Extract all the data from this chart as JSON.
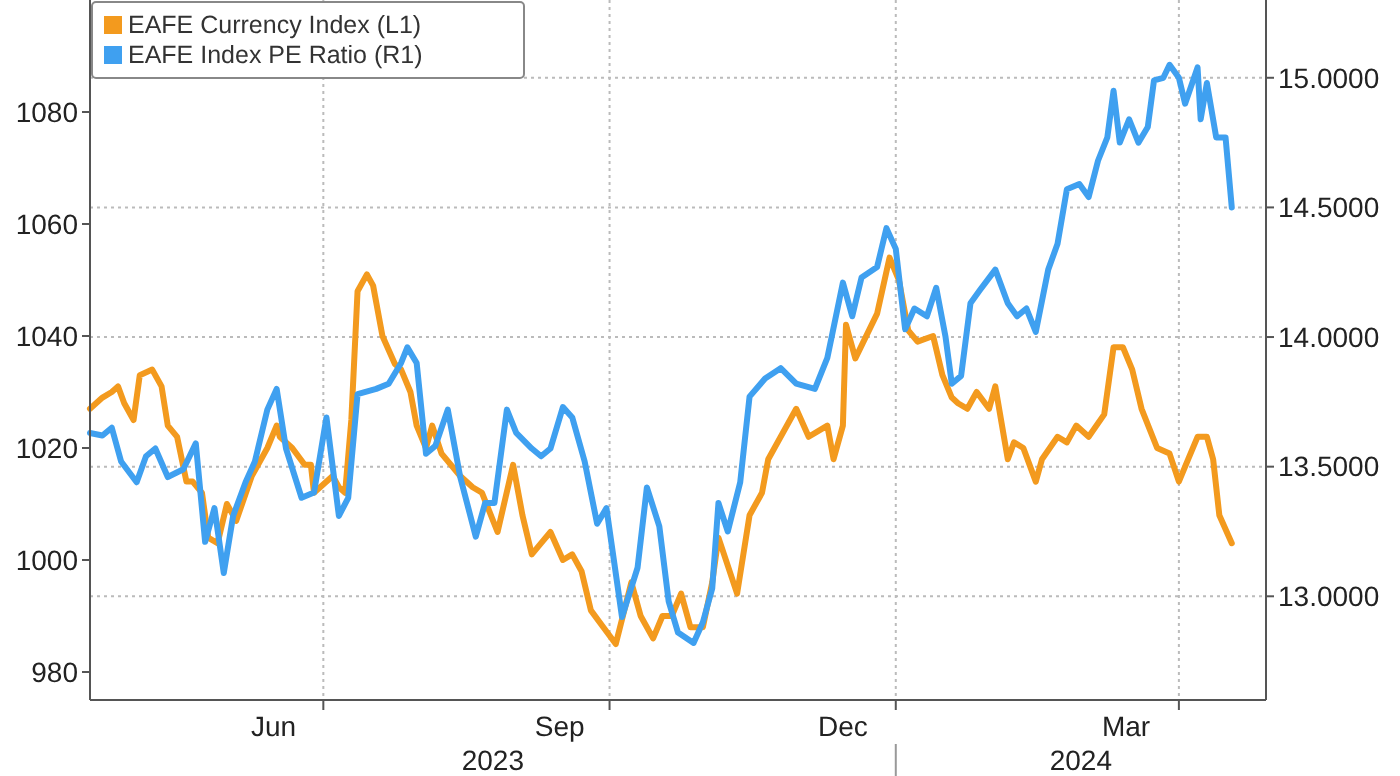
{
  "chart_data": {
    "type": "line",
    "xlim": [
      "2023-04-17",
      "2024-04-29"
    ],
    "xticks": [
      {
        "value": "2023-06-15",
        "label": "Jun"
      },
      {
        "value": "2023-07-01",
        "label": null
      },
      {
        "value": "2023-09-15",
        "label": "Sep"
      },
      {
        "value": "2023-10-01",
        "label": null
      },
      {
        "value": "2023-12-15",
        "label": "Dec"
      },
      {
        "value": "2024-01-01",
        "label": null
      },
      {
        "value": "2024-03-15",
        "label": "Mar"
      },
      {
        "value": "2024-04-01",
        "label": null
      }
    ],
    "ylim": [
      975,
      1100
    ],
    "yticks": [
      980,
      1000,
      1020,
      1040,
      1060,
      1080
    ],
    "y2lim": [
      12.6,
      15.3
    ],
    "y2ticks": [
      {
        "value": 13,
        "label": "13.0000"
      },
      {
        "value": 13.5,
        "label": "13.5000"
      },
      {
        "value": 14,
        "label": "14.0000"
      },
      {
        "value": 14.5,
        "label": "14.5000"
      },
      {
        "value": 15,
        "label": "15.0000"
      }
    ],
    "grid": true,
    "legend": "top left",
    "line_style": "solid",
    "annotations": [
      "2023",
      "2024"
    ],
    "series": [
      {
        "name": "EAFE Currency Index (L1)",
        "color": "#f39a1e",
        "x": [
          "2023-04-17",
          "2023-04-21",
          "2023-04-24",
          "2023-04-26",
          "2023-04-28",
          "2023-05-01",
          "2023-05-03",
          "2023-05-07",
          "2023-05-10",
          "2023-05-12",
          "2023-05-15",
          "2023-05-18",
          "2023-05-20",
          "2023-05-23",
          "2023-05-25",
          "2023-05-28",
          "2023-05-31",
          "2023-06-03",
          "2023-06-08",
          "2023-06-13",
          "2023-06-16",
          "2023-06-17",
          "2023-06-21",
          "2023-06-25",
          "2023-06-27",
          "2023-06-28",
          "2023-07-04",
          "2023-07-06",
          "2023-07-08",
          "2023-07-10",
          "2023-07-12",
          "2023-07-15",
          "2023-07-17",
          "2023-07-20",
          "2023-07-24",
          "2023-07-26",
          "2023-07-29",
          "2023-07-31",
          "2023-08-03",
          "2023-08-05",
          "2023-08-08",
          "2023-08-14",
          "2023-08-18",
          "2023-08-21",
          "2023-08-26",
          "2023-08-31",
          "2023-09-03",
          "2023-09-06",
          "2023-09-09",
          "2023-09-12",
          "2023-09-16",
          "2023-09-19",
          "2023-09-22",
          "2023-09-25",
          "2023-09-29",
          "2023-10-03",
          "2023-10-08",
          "2023-10-11",
          "2023-10-15",
          "2023-10-18",
          "2023-10-21",
          "2023-10-24",
          "2023-10-27",
          "2023-10-31",
          "2023-11-03",
          "2023-11-05",
          "2023-11-08",
          "2023-11-11",
          "2023-11-15",
          "2023-11-19",
          "2023-11-21",
          "2023-11-30",
          "2023-12-04",
          "2023-12-10",
          "2023-12-12",
          "2023-12-15",
          "2023-12-16",
          "2023-12-19",
          "2023-12-26",
          "2023-12-30",
          "2024-01-02",
          "2024-01-05",
          "2024-01-08",
          "2024-01-13",
          "2024-01-16",
          "2024-01-19",
          "2024-01-21",
          "2024-01-24",
          "2024-01-27",
          "2024-01-31",
          "2024-02-02",
          "2024-02-06",
          "2024-02-08",
          "2024-02-11",
          "2024-02-15",
          "2024-02-17",
          "2024-02-22",
          "2024-02-25",
          "2024-02-28",
          "2024-03-03",
          "2024-03-08",
          "2024-03-11",
          "2024-03-14",
          "2024-03-17",
          "2024-03-20",
          "2024-03-25",
          "2024-03-29",
          "2024-04-01",
          "2024-04-04",
          "2024-04-07",
          "2024-04-10",
          "2024-04-12",
          "2024-04-14",
          "2024-04-18"
        ],
        "values": [
          1027,
          1029,
          1030,
          1031,
          1028,
          1025,
          1033,
          1034,
          1031,
          1024,
          1022,
          1014,
          1014,
          1012,
          1004,
          1003,
          1010,
          1007,
          1015,
          1020,
          1024,
          1022,
          1020,
          1017,
          1017,
          1012,
          1015,
          1013,
          1012,
          1025,
          1048,
          1051,
          1049,
          1040,
          1035,
          1034,
          1030,
          1024,
          1020,
          1024,
          1019,
          1015,
          1013,
          1012,
          1005,
          1017,
          1008,
          1001,
          1003,
          1005,
          1000,
          1001,
          998,
          991,
          988,
          985,
          996,
          990,
          986,
          990,
          990,
          994,
          988,
          988,
          996,
          1004,
          999,
          994,
          1008,
          1012,
          1018,
          1027,
          1022,
          1024,
          1018,
          1024,
          1042,
          1036,
          1044,
          1054,
          1050,
          1041,
          1039,
          1040,
          1033,
          1029,
          1028,
          1027,
          1030,
          1027,
          1031,
          1018,
          1021,
          1020,
          1014,
          1018,
          1022,
          1021,
          1024,
          1022,
          1026,
          1038,
          1038,
          1034,
          1027,
          1020,
          1019,
          1014,
          1018,
          1022,
          1022,
          1018,
          1008,
          1003
        ]
      },
      {
        "name": "EAFE Index PE Ratio (R1)",
        "color": "#3fa0f0",
        "axis": "y2",
        "x": [
          "2023-04-17",
          "2023-04-21",
          "2023-04-24",
          "2023-04-27",
          "2023-05-02",
          "2023-05-05",
          "2023-05-08",
          "2023-05-12",
          "2023-05-17",
          "2023-05-21",
          "2023-05-24",
          "2023-05-27",
          "2023-05-30",
          "2023-06-02",
          "2023-06-06",
          "2023-06-09",
          "2023-06-13",
          "2023-06-16",
          "2023-06-19",
          "2023-06-24",
          "2023-06-28",
          "2023-07-02",
          "2023-07-06",
          "2023-07-09",
          "2023-07-12",
          "2023-07-18",
          "2023-07-22",
          "2023-07-26",
          "2023-07-28",
          "2023-07-31",
          "2023-08-03",
          "2023-08-06",
          "2023-08-10",
          "2023-08-14",
          "2023-08-19",
          "2023-08-22",
          "2023-08-25",
          "2023-08-29",
          "2023-09-01",
          "2023-09-06",
          "2023-09-09",
          "2023-09-12",
          "2023-09-16",
          "2023-09-19",
          "2023-09-23",
          "2023-09-27",
          "2023-09-30",
          "2023-10-05",
          "2023-10-10",
          "2023-10-13",
          "2023-10-17",
          "2023-10-20",
          "2023-10-23",
          "2023-10-28",
          "2023-10-31",
          "2023-11-03",
          "2023-11-05",
          "2023-11-08",
          "2023-11-12",
          "2023-11-15",
          "2023-11-20",
          "2023-11-25",
          "2023-11-30",
          "2023-12-06",
          "2023-12-10",
          "2023-12-15",
          "2023-12-18",
          "2023-12-21",
          "2023-12-26",
          "2023-12-29",
          "2024-01-01",
          "2024-01-04",
          "2024-01-07",
          "2024-01-11",
          "2024-01-14",
          "2024-01-17",
          "2024-01-19",
          "2024-01-22",
          "2024-01-25",
          "2024-01-28",
          "2024-02-02",
          "2024-02-06",
          "2024-02-09",
          "2024-02-12",
          "2024-02-15",
          "2024-02-19",
          "2024-02-22",
          "2024-02-25",
          "2024-02-29",
          "2024-03-03",
          "2024-03-06",
          "2024-03-09",
          "2024-03-11",
          "2024-03-13",
          "2024-03-16",
          "2024-03-19",
          "2024-03-22",
          "2024-03-24",
          "2024-03-27",
          "2024-03-29",
          "2024-04-01",
          "2024-04-03",
          "2024-04-07",
          "2024-04-08",
          "2024-04-10",
          "2024-04-13",
          "2024-04-16",
          "2024-04-18"
        ],
        "values": [
          13.63,
          13.62,
          13.65,
          13.52,
          13.44,
          13.54,
          13.57,
          13.46,
          13.49,
          13.59,
          13.21,
          13.34,
          13.09,
          13.31,
          13.44,
          13.52,
          13.72,
          13.8,
          13.57,
          13.38,
          13.4,
          13.69,
          13.31,
          13.38,
          13.78,
          13.8,
          13.82,
          13.9,
          13.96,
          13.9,
          13.55,
          13.58,
          13.72,
          13.46,
          13.23,
          13.36,
          13.36,
          13.72,
          13.63,
          13.57,
          13.54,
          13.57,
          13.73,
          13.69,
          13.52,
          13.28,
          13.34,
          12.92,
          13.11,
          13.42,
          13.27,
          12.98,
          12.86,
          12.82,
          12.9,
          13.03,
          13.36,
          13.25,
          13.44,
          13.77,
          13.84,
          13.88,
          13.82,
          13.8,
          13.92,
          14.21,
          14.08,
          14.23,
          14.27,
          14.42,
          14.34,
          14.03,
          14.11,
          14.08,
          14.19,
          14,
          13.82,
          13.85,
          14.13,
          14.18,
          14.26,
          14.13,
          14.08,
          14.11,
          14.02,
          14.26,
          14.36,
          14.57,
          14.59,
          14.54,
          14.68,
          14.77,
          14.95,
          14.75,
          14.84,
          14.75,
          14.81,
          14.99,
          15,
          15.05,
          15,
          14.9,
          15.04,
          14.84,
          14.98,
          14.77,
          14.77,
          14.5
        ]
      }
    ]
  }
}
